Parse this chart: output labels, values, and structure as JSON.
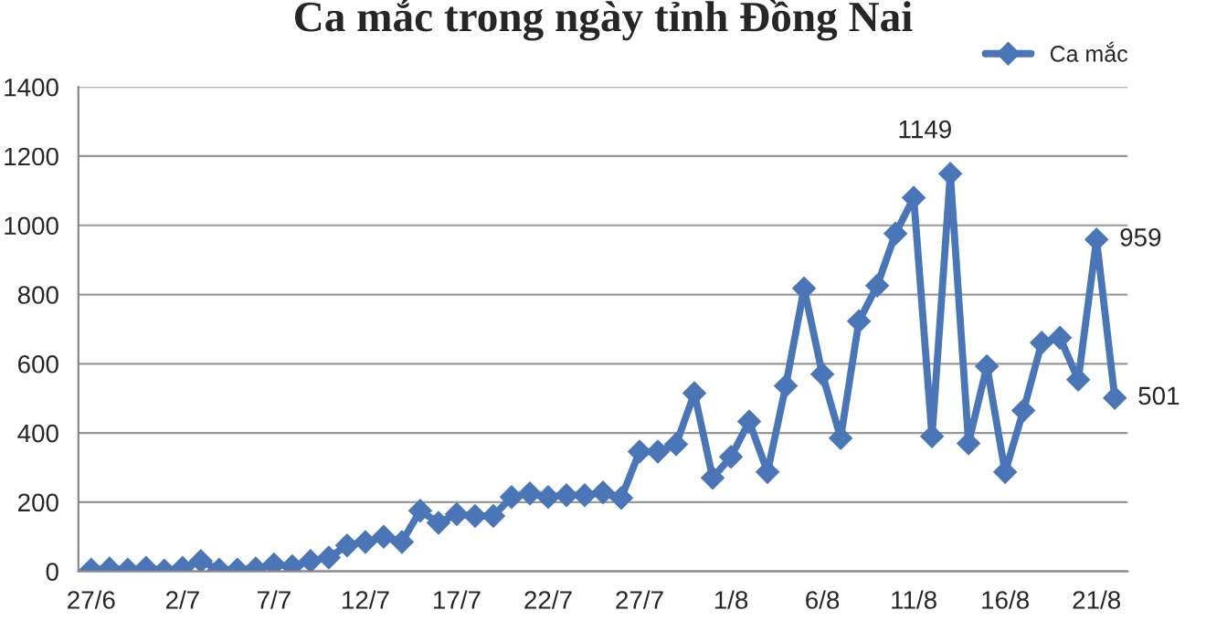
{
  "chart_data": {
    "type": "line",
    "title": "Ca mắc trong ngày tỉnh Đồng Nai",
    "categories": [
      "27/6",
      null,
      null,
      null,
      null,
      "2/7",
      null,
      null,
      null,
      null,
      "7/7",
      null,
      null,
      null,
      null,
      "12/7",
      null,
      null,
      null,
      null,
      "17/7",
      null,
      null,
      null,
      null,
      "22/7",
      null,
      null,
      null,
      null,
      "27/7",
      null,
      null,
      null,
      null,
      "1/8",
      null,
      null,
      null,
      null,
      "6/8",
      null,
      null,
      null,
      null,
      "11/8",
      null,
      null,
      null,
      null,
      "16/8",
      null,
      null,
      null,
      null,
      "21/8",
      null
    ],
    "series": [
      {
        "name": "Ca mắc",
        "color": "#4a76b8",
        "values": [
          5,
          8,
          5,
          10,
          2,
          10,
          30,
          5,
          5,
          8,
          20,
          15,
          30,
          40,
          75,
          85,
          100,
          85,
          175,
          140,
          165,
          160,
          160,
          215,
          225,
          215,
          220,
          220,
          228,
          212,
          346,
          346,
          367,
          515,
          270,
          331,
          433,
          287,
          536,
          818,
          570,
          385,
          723,
          826,
          976,
          1080,
          390,
          1149,
          370,
          593,
          287,
          465,
          661,
          675,
          554,
          959,
          501
        ],
        "value_labels": [
          null,
          null,
          null,
          null,
          null,
          null,
          null,
          null,
          null,
          null,
          null,
          null,
          null,
          null,
          null,
          null,
          null,
          null,
          null,
          null,
          null,
          null,
          null,
          null,
          null,
          null,
          null,
          null,
          null,
          null,
          null,
          null,
          null,
          null,
          null,
          null,
          null,
          null,
          null,
          null,
          null,
          null,
          null,
          null,
          null,
          null,
          null,
          "1149",
          null,
          null,
          null,
          null,
          null,
          null,
          null,
          "959",
          "501"
        ]
      }
    ],
    "ylim": [
      0,
      1400
    ],
    "yticks": [
      0,
      200,
      400,
      600,
      800,
      1000,
      1200,
      1400
    ],
    "grid": "y",
    "legend": "top right",
    "marker": "diamond",
    "line_style": "solid"
  }
}
